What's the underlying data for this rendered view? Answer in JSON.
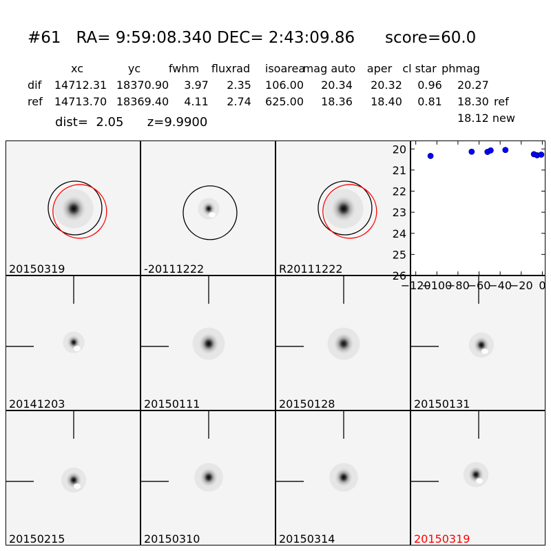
{
  "title": "#61   RA= 9:59:08.340 DEC= 2:43:09.86      score=60.0",
  "table": {
    "headers": [
      "xc",
      "yc",
      "fwhm",
      "fluxrad",
      "isoarea",
      "mag auto",
      "aper",
      "cl star",
      "phmag"
    ],
    "rows": [
      {
        "label": "dif",
        "values": [
          "14712.31",
          "18370.90",
          "3.97",
          "2.35",
          "106.00",
          "20.34",
          "20.32",
          "0.96",
          "20.27"
        ],
        "suffix": ""
      },
      {
        "label": "ref",
        "values": [
          "14713.70",
          "18369.40",
          "4.11",
          "2.74",
          "625.00",
          "18.36",
          "18.40",
          "0.81",
          "18.30"
        ],
        "suffix": "ref"
      }
    ],
    "extra": "18.12 new"
  },
  "dist_line": "dist=  2.05      z=9.9900",
  "colors": {
    "circle_black": "#000000",
    "circle_red": "#ff0000",
    "point": "#0000ff",
    "point_edge": "#000080",
    "highlight_label": "#ff0000"
  },
  "panels": [
    {
      "label": "20150319",
      "highlight": false
    },
    {
      "label": "-20111222",
      "highlight": false
    },
    {
      "label": "R20111222",
      "highlight": false
    },
    {
      "label": "20141203",
      "highlight": false
    },
    {
      "label": "20150111",
      "highlight": false
    },
    {
      "label": "20150128",
      "highlight": false
    },
    {
      "label": "20150131",
      "highlight": false
    },
    {
      "label": "20150215",
      "highlight": false
    },
    {
      "label": "20150310",
      "highlight": false
    },
    {
      "label": "20150314",
      "highlight": false
    },
    {
      "label": "20150319",
      "highlight": true
    }
  ],
  "chart_data": {
    "type": "scatter",
    "title": "",
    "xlabel": "",
    "ylabel": "",
    "xlim": [
      -125,
      3
    ],
    "ylim": [
      26,
      19.6
    ],
    "y_inverted": true,
    "xticks": [
      -120,
      -100,
      -80,
      -60,
      -40,
      -20,
      0
    ],
    "xtick_labels": [
      "−120",
      "−100",
      "−80",
      "−60",
      "−40",
      "−20",
      "0"
    ],
    "yticks": [
      20,
      21,
      22,
      23,
      24,
      25,
      26
    ],
    "ytick_labels": [
      "20",
      "21",
      "22",
      "23",
      "24",
      "25",
      "26"
    ],
    "x": [
      -106,
      -67,
      -52,
      -49,
      -35,
      -8,
      -5,
      -1
    ],
    "y": [
      20.33,
      20.13,
      20.14,
      20.07,
      20.05,
      20.25,
      20.3,
      20.27
    ]
  }
}
